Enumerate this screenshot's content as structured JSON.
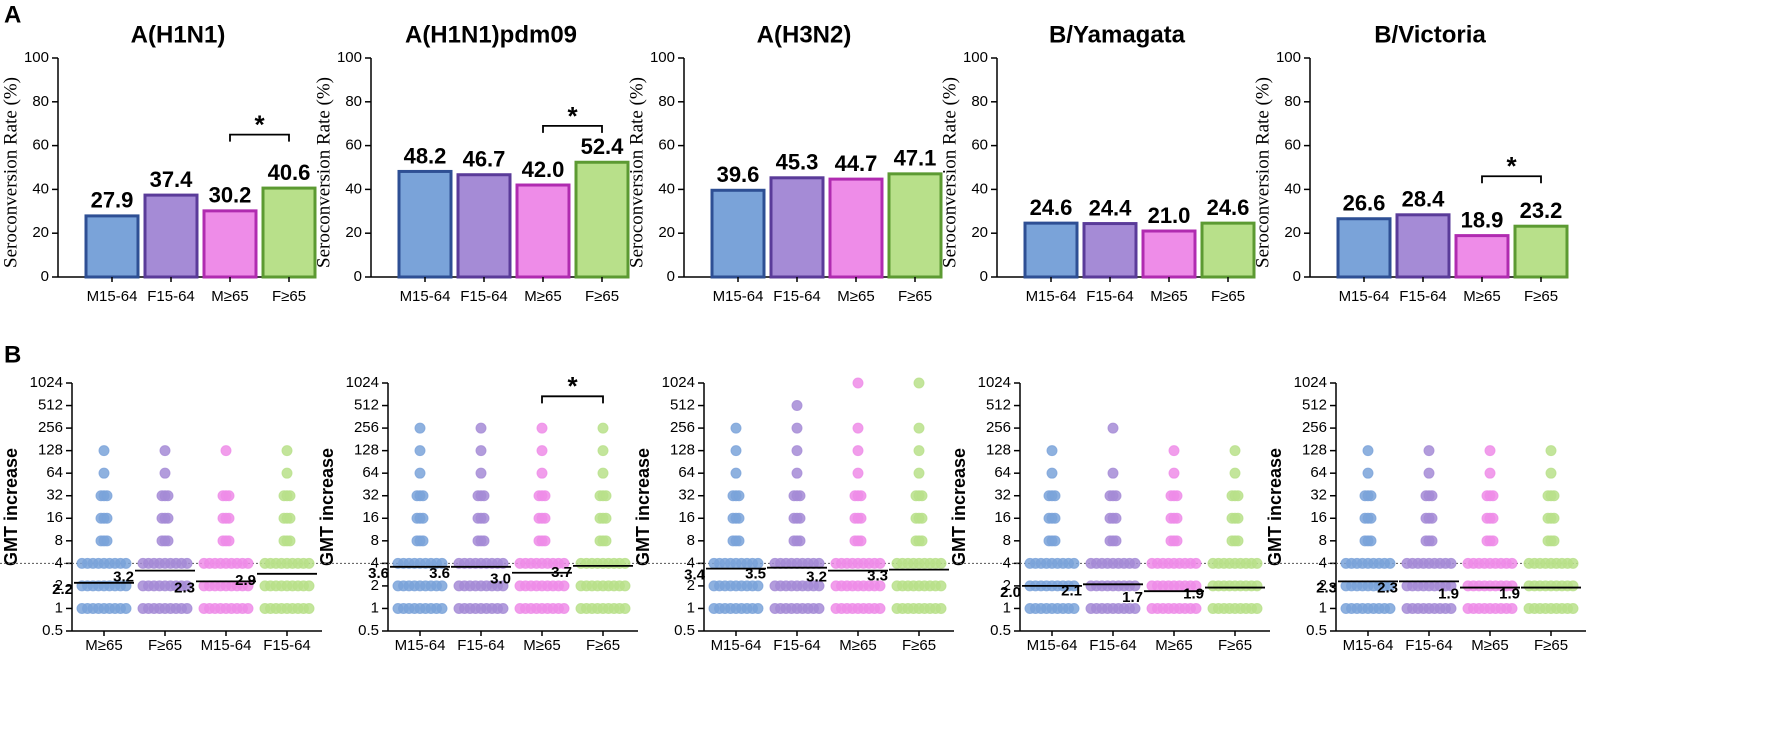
{
  "panel_labels": [
    "A",
    "B"
  ],
  "chart_data": [
    {
      "type": "bar",
      "title": "A(H1N1)",
      "ylabel": "Seroconversion Rate (%)",
      "categories": [
        "M15-64",
        "F15-64",
        "M≥65",
        "F≥65"
      ],
      "values": [
        27.9,
        37.4,
        30.2,
        40.6
      ],
      "value_labels": [
        "27.9",
        "37.4",
        "30.2",
        "40.6"
      ],
      "colors": [
        "#7aa3d9",
        "#a58bd6",
        "#ee8ce8",
        "#b8e08a"
      ],
      "edgecolors": [
        "#2e4f94",
        "#5a3b99",
        "#b02bb0",
        "#5c9a32"
      ],
      "ylim": [
        0,
        100
      ],
      "yticks": [
        0,
        20,
        40,
        60,
        80,
        100
      ],
      "annotations": [
        {
          "text": "*",
          "between": [
            "M≥65",
            "F≥65"
          ],
          "y": 65
        }
      ]
    },
    {
      "type": "bar",
      "title": "A(H1N1)pdm09",
      "ylabel": "Seroconversion Rate (%)",
      "categories": [
        "M15-64",
        "F15-64",
        "M≥65",
        "F≥65"
      ],
      "values": [
        48.2,
        46.7,
        42.0,
        52.4
      ],
      "value_labels": [
        "48.2",
        "46.7",
        "42.0",
        "52.4"
      ],
      "colors": [
        "#7aa3d9",
        "#a58bd6",
        "#ee8ce8",
        "#b8e08a"
      ],
      "edgecolors": [
        "#2e4f94",
        "#5a3b99",
        "#b02bb0",
        "#5c9a32"
      ],
      "ylim": [
        0,
        100
      ],
      "yticks": [
        0,
        20,
        40,
        60,
        80,
        100
      ],
      "annotations": [
        {
          "text": "*",
          "between": [
            "M≥65",
            "F≥65"
          ],
          "y": 69
        }
      ]
    },
    {
      "type": "bar",
      "title": "A(H3N2)",
      "ylabel": "Seroconversion Rate (%)",
      "categories": [
        "M15-64",
        "F15-64",
        "M≥65",
        "F≥65"
      ],
      "values": [
        39.6,
        45.3,
        44.7,
        47.1
      ],
      "value_labels": [
        "39.6",
        "45.3",
        "44.7",
        "47.1"
      ],
      "colors": [
        "#7aa3d9",
        "#a58bd6",
        "#ee8ce8",
        "#b8e08a"
      ],
      "edgecolors": [
        "#2e4f94",
        "#5a3b99",
        "#b02bb0",
        "#5c9a32"
      ],
      "ylim": [
        0,
        100
      ],
      "yticks": [
        0,
        20,
        40,
        60,
        80,
        100
      ],
      "annotations": []
    },
    {
      "type": "bar",
      "title": "B/Yamagata",
      "ylabel": "Seroconversion Rate (%)",
      "categories": [
        "M15-64",
        "F15-64",
        "M≥65",
        "F≥65"
      ],
      "values": [
        24.6,
        24.4,
        21.0,
        24.6
      ],
      "value_labels": [
        "24.6",
        "24.4",
        "21.0",
        "24.6"
      ],
      "colors": [
        "#7aa3d9",
        "#a58bd6",
        "#ee8ce8",
        "#b8e08a"
      ],
      "edgecolors": [
        "#2e4f94",
        "#5a3b99",
        "#b02bb0",
        "#5c9a32"
      ],
      "ylim": [
        0,
        100
      ],
      "yticks": [
        0,
        20,
        40,
        60,
        80,
        100
      ],
      "annotations": []
    },
    {
      "type": "bar",
      "title": "B/Victoria",
      "ylabel": "Seroconversion Rate (%)",
      "categories": [
        "M15-64",
        "F15-64",
        "M≥65",
        "F≥65"
      ],
      "values": [
        26.6,
        28.4,
        18.9,
        23.2
      ],
      "value_labels": [
        "26.6",
        "28.4",
        "18.9",
        "23.2"
      ],
      "colors": [
        "#7aa3d9",
        "#a58bd6",
        "#ee8ce8",
        "#b8e08a"
      ],
      "edgecolors": [
        "#2e4f94",
        "#5a3b99",
        "#b02bb0",
        "#5c9a32"
      ],
      "ylim": [
        0,
        100
      ],
      "yticks": [
        0,
        20,
        40,
        60,
        80,
        100
      ],
      "annotations": [
        {
          "text": "*",
          "between": [
            "M≥65",
            "F≥65"
          ],
          "y": 46
        }
      ]
    },
    {
      "type": "strip",
      "ylabel": "GMT increase",
      "log_y": true,
      "categories": [
        "M≥65",
        "F≥65",
        "M15-64",
        "F15-64"
      ],
      "points": [
        [
          1,
          2,
          4,
          8,
          16,
          32,
          64,
          128
        ],
        [
          1,
          2,
          4,
          8,
          16,
          32,
          64,
          128
        ],
        [
          1,
          2,
          4,
          8,
          16,
          32,
          128
        ],
        [
          1,
          2,
          4,
          8,
          16,
          32,
          64,
          128
        ]
      ],
      "values": [
        2.2,
        3.2,
        2.3,
        2.9
      ],
      "value_labels": [
        "2.2",
        "3.2",
        "2.3",
        "2.9"
      ],
      "colors": [
        "#7aa3d9",
        "#a58bd6",
        "#ee8ce8",
        "#b8e08a"
      ],
      "reference_line": 4,
      "ylim": [
        0.5,
        1024
      ],
      "yticks": [
        0.5,
        1,
        2,
        4,
        8,
        16,
        32,
        64,
        128,
        256,
        512,
        1024
      ],
      "annotations": []
    },
    {
      "type": "strip",
      "ylabel": "GMT increase",
      "log_y": true,
      "categories": [
        "M15-64",
        "F15-64",
        "M≥65",
        "F≥65"
      ],
      "points": [
        [
          1,
          2,
          4,
          8,
          16,
          32,
          64,
          128,
          256
        ],
        [
          1,
          2,
          4,
          8,
          16,
          32,
          64,
          128,
          256
        ],
        [
          1,
          2,
          4,
          8,
          16,
          32,
          64,
          128,
          256
        ],
        [
          1,
          2,
          4,
          8,
          16,
          32,
          64,
          128,
          256
        ]
      ],
      "values": [
        3.6,
        3.6,
        3.0,
        3.7
      ],
      "value_labels": [
        "3.6",
        "3.6",
        "3.0",
        "3.7"
      ],
      "colors": [
        "#7aa3d9",
        "#a58bd6",
        "#ee8ce8",
        "#b8e08a"
      ],
      "reference_line": 4,
      "ylim": [
        0.5,
        1024
      ],
      "yticks": [
        0.5,
        1,
        2,
        4,
        8,
        16,
        32,
        64,
        128,
        256,
        512,
        1024
      ],
      "annotations": [
        {
          "text": "*",
          "between": [
            "M≥65",
            "F≥65"
          ],
          "y": 680
        }
      ]
    },
    {
      "type": "strip",
      "ylabel": "GMT increase",
      "log_y": true,
      "categories": [
        "M15-64",
        "F15-64",
        "M≥65",
        "F≥65"
      ],
      "points": [
        [
          1,
          2,
          4,
          8,
          16,
          32,
          64,
          128,
          256
        ],
        [
          1,
          2,
          4,
          8,
          16,
          32,
          64,
          128,
          256,
          512
        ],
        [
          1,
          2,
          4,
          8,
          16,
          32,
          64,
          128,
          256,
          1024
        ],
        [
          1,
          2,
          4,
          8,
          16,
          32,
          64,
          128,
          256,
          1024
        ]
      ],
      "values": [
        3.4,
        3.5,
        3.2,
        3.3
      ],
      "value_labels": [
        "3.4",
        "3.5",
        "3.2",
        "3.3"
      ],
      "colors": [
        "#7aa3d9",
        "#a58bd6",
        "#ee8ce8",
        "#b8e08a"
      ],
      "reference_line": 4,
      "ylim": [
        0.5,
        1024
      ],
      "yticks": [
        0.5,
        1,
        2,
        4,
        8,
        16,
        32,
        64,
        128,
        256,
        512,
        1024
      ],
      "annotations": []
    },
    {
      "type": "strip",
      "ylabel": "GMT increase",
      "log_y": true,
      "categories": [
        "M15-64",
        "F15-64",
        "M≥65",
        "F≥65"
      ],
      "points": [
        [
          1,
          2,
          4,
          8,
          16,
          32,
          64,
          128
        ],
        [
          1,
          2,
          4,
          8,
          16,
          32,
          64,
          256
        ],
        [
          1,
          2,
          4,
          8,
          16,
          32,
          64,
          128
        ],
        [
          1,
          2,
          4,
          8,
          16,
          32,
          64,
          128
        ]
      ],
      "values": [
        2.0,
        2.1,
        1.7,
        1.9
      ],
      "value_labels": [
        "2.0",
        "2.1",
        "1.7",
        "1.9"
      ],
      "colors": [
        "#7aa3d9",
        "#a58bd6",
        "#ee8ce8",
        "#b8e08a"
      ],
      "reference_line": 4,
      "ylim": [
        0.5,
        1024
      ],
      "yticks": [
        0.5,
        1,
        2,
        4,
        8,
        16,
        32,
        64,
        128,
        256,
        512,
        1024
      ],
      "annotations": []
    },
    {
      "type": "strip",
      "ylabel": "GMT increase",
      "log_y": true,
      "categories": [
        "M15-64",
        "F15-64",
        "M≥65",
        "F≥65"
      ],
      "points": [
        [
          1,
          2,
          4,
          8,
          16,
          32,
          64,
          128
        ],
        [
          1,
          2,
          4,
          8,
          16,
          32,
          64,
          128
        ],
        [
          1,
          2,
          4,
          8,
          16,
          32,
          64,
          128
        ],
        [
          1,
          2,
          4,
          8,
          16,
          32,
          64,
          128
        ]
      ],
      "values": [
        2.3,
        2.3,
        1.9,
        1.9
      ],
      "value_labels": [
        "2.3",
        "2.3",
        "1.9",
        "1.9"
      ],
      "colors": [
        "#7aa3d9",
        "#a58bd6",
        "#ee8ce8",
        "#b8e08a"
      ],
      "reference_line": 4,
      "ylim": [
        0.5,
        1024
      ],
      "yticks": [
        0.5,
        1,
        2,
        4,
        8,
        16,
        32,
        64,
        128,
        256,
        512,
        1024
      ],
      "annotations": []
    }
  ]
}
